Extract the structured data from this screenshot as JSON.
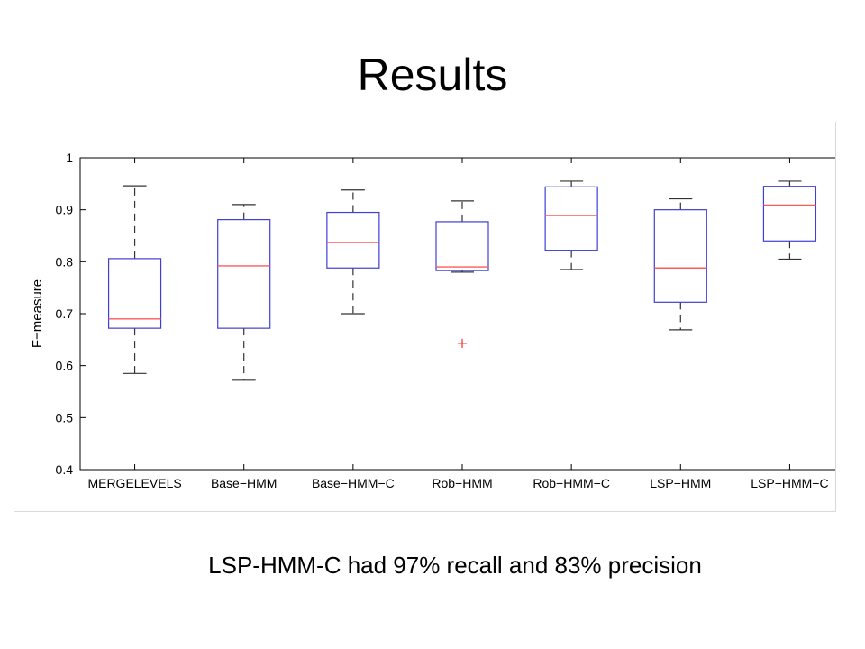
{
  "slide": {
    "title": "Results",
    "caption": "LSP-HMM-C had 97% recall and 83% precision"
  },
  "colors": {
    "box": "#3f3fd8",
    "median": "#ff5a5a",
    "whisker": "#333333",
    "outlier": "#ff3333",
    "axis": "#000000"
  },
  "chart_data": {
    "type": "box",
    "title": "",
    "xlabel": "",
    "ylabel": "F−measure",
    "ylim": [
      0.4,
      1.0
    ],
    "yticks": [
      0.4,
      0.5,
      0.6,
      0.7,
      0.8,
      0.9,
      1.0
    ],
    "ytick_labels": [
      "0.4",
      "0.5",
      "0.6",
      "0.7",
      "0.8",
      "0.9",
      "1"
    ],
    "grid": false,
    "categories": [
      "MERGELEVELS",
      "Base−HMM",
      "Base−HMM−C",
      "Rob−HMM",
      "Rob−HMM−C",
      "LSP−HMM",
      "LSP−HMM−C"
    ],
    "boxes": [
      {
        "whisker_low": 0.585,
        "q1": 0.672,
        "median": 0.69,
        "q3": 0.806,
        "whisker_high": 0.946,
        "outliers": []
      },
      {
        "whisker_low": 0.572,
        "q1": 0.672,
        "median": 0.792,
        "q3": 0.881,
        "whisker_high": 0.91,
        "outliers": []
      },
      {
        "whisker_low": 0.7,
        "q1": 0.788,
        "median": 0.837,
        "q3": 0.895,
        "whisker_high": 0.938,
        "outliers": []
      },
      {
        "whisker_low": 0.78,
        "q1": 0.783,
        "median": 0.79,
        "q3": 0.877,
        "whisker_high": 0.917,
        "outliers": [
          0.643
        ]
      },
      {
        "whisker_low": 0.785,
        "q1": 0.822,
        "median": 0.889,
        "q3": 0.944,
        "whisker_high": 0.955,
        "outliers": []
      },
      {
        "whisker_low": 0.669,
        "q1": 0.722,
        "median": 0.788,
        "q3": 0.9,
        "whisker_high": 0.921,
        "outliers": []
      },
      {
        "whisker_low": 0.805,
        "q1": 0.84,
        "median": 0.909,
        "q3": 0.945,
        "whisker_high": 0.955,
        "outliers": []
      }
    ]
  }
}
